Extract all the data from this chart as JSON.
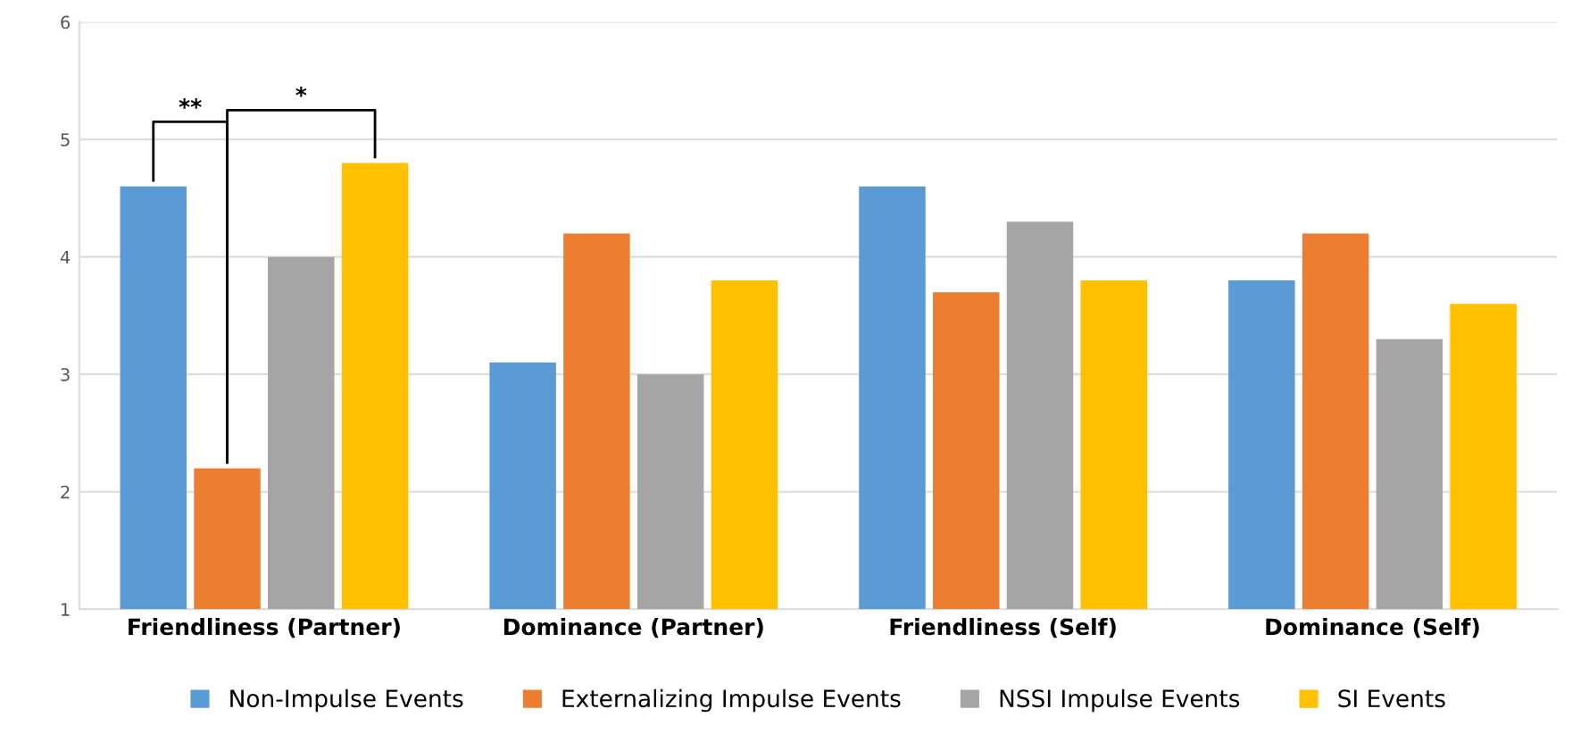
{
  "chart_data": {
    "type": "bar",
    "categories": [
      "Friendliness (Partner)",
      "Dominance (Partner)",
      "Friendliness (Self)",
      "Dominance (Self)"
    ],
    "series": [
      {
        "name": "Non-Impulse Events",
        "color": "#5b9bd5",
        "values": [
          4.6,
          3.1,
          4.6,
          3.8
        ]
      },
      {
        "name": "Externalizing Impulse Events",
        "color": "#ed7d31",
        "values": [
          2.2,
          4.2,
          3.7,
          4.2
        ]
      },
      {
        "name": "NSSI Impulse Events",
        "color": "#a5a5a5",
        "values": [
          4.0,
          3.0,
          4.3,
          3.3
        ]
      },
      {
        "name": "SI Events",
        "color": "#ffc000",
        "values": [
          4.8,
          3.8,
          3.8,
          3.6
        ]
      }
    ],
    "ylim": [
      1,
      6
    ],
    "yticks": [
      1,
      2,
      3,
      4,
      5,
      6
    ],
    "grid": "y",
    "legend": "bottom",
    "annotations": [
      "**",
      "*"
    ]
  }
}
